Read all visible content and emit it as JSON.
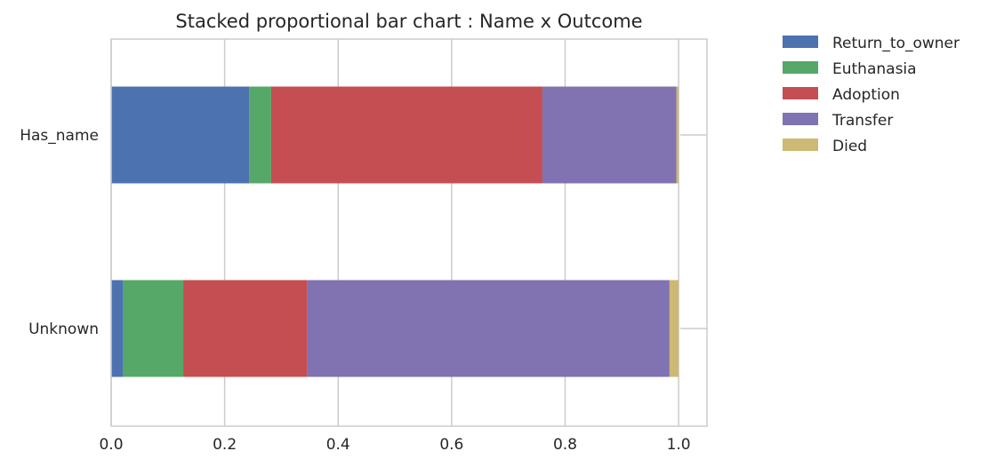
{
  "chart_data": {
    "type": "bar",
    "orientation": "horizontal",
    "stacked": true,
    "title": "Stacked proportional bar chart : Name x Outcome",
    "xlabel": "",
    "ylabel": "",
    "xlim": [
      0,
      1.05
    ],
    "xticks": [
      "0.0",
      "0.2",
      "0.4",
      "0.6",
      "0.8",
      "1.0"
    ],
    "categories": [
      "Has_name",
      "Unknown"
    ],
    "grid": true,
    "legend_position": "outside-top-right",
    "series": [
      {
        "name": "Return_to_owner",
        "color": "#4C72B0",
        "values": [
          0.243,
          0.021
        ]
      },
      {
        "name": "Euthanasia",
        "color": "#55A868",
        "values": [
          0.039,
          0.106
        ]
      },
      {
        "name": "Adoption",
        "color": "#C44E52",
        "values": [
          0.478,
          0.219
        ]
      },
      {
        "name": "Transfer",
        "color": "#8172B2",
        "values": [
          0.236,
          0.638
        ]
      },
      {
        "name": "Died",
        "color": "#CCB974",
        "values": [
          0.004,
          0.016
        ]
      }
    ]
  }
}
